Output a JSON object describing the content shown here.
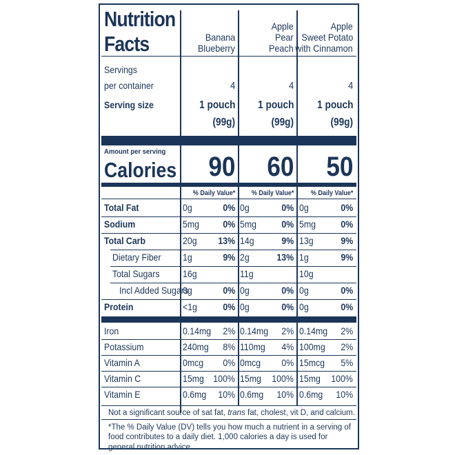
{
  "title_line1": "Nutrition",
  "title_line2": "Facts",
  "products": [
    {
      "name_lines": [
        "Banana",
        "Blueberry"
      ]
    },
    {
      "name_lines": [
        "Apple",
        "Pear",
        "Peach"
      ]
    },
    {
      "name_lines": [
        "Apple",
        "Sweet Potato",
        "with Cinnamon"
      ]
    }
  ],
  "servings_label_1": "Servings",
  "servings_label_2": "per container",
  "servings_values": [
    "4",
    "4",
    "4"
  ],
  "serving_size_label": "Serving size",
  "serving_size_line1": [
    "1 pouch",
    "1 pouch",
    "1 pouch"
  ],
  "serving_size_line2": [
    "(99g)",
    "(99g)",
    "(99g)"
  ],
  "amount_per_serving": "Amount per serving",
  "calories_label": "Calories",
  "calories": [
    "90",
    "60",
    "50"
  ],
  "dv_header": [
    "% Daily Value*",
    "% Daily Value*",
    "% Daily Value*"
  ],
  "nutrients": [
    {
      "label": "Total Fat",
      "bold": true,
      "indent": 0,
      "values": [
        [
          "0g",
          "0%"
        ],
        [
          "0g",
          "0%"
        ],
        [
          "0g",
          "0%"
        ]
      ]
    },
    {
      "label": "Sodium",
      "bold": true,
      "indent": 0,
      "values": [
        [
          "5mg",
          "0%"
        ],
        [
          "5mg",
          "0%"
        ],
        [
          "5mg",
          "0%"
        ]
      ]
    },
    {
      "label": "Total Carb",
      "bold": true,
      "indent": 0,
      "values": [
        [
          "20g",
          "13%"
        ],
        [
          "14g",
          "9%"
        ],
        [
          "13g",
          "9%"
        ]
      ]
    },
    {
      "label": "Dietary Fiber",
      "bold": false,
      "indent": 1,
      "values": [
        [
          "1g",
          "9%"
        ],
        [
          "2g",
          "13%"
        ],
        [
          "1g",
          "9%"
        ]
      ]
    },
    {
      "label": "Total Sugars",
      "bold": false,
      "indent": 1,
      "values": [
        [
          "16g",
          ""
        ],
        [
          "11g",
          ""
        ],
        [
          "10g",
          ""
        ]
      ]
    },
    {
      "label": "Incl Added Sugars",
      "bold": false,
      "indent": 2,
      "values": [
        [
          "0g",
          "0%"
        ],
        [
          "0g",
          "0%"
        ],
        [
          "0g",
          "0%"
        ]
      ]
    },
    {
      "label": "Protein",
      "bold": true,
      "indent": 0,
      "values": [
        [
          "<1g",
          "0%"
        ],
        [
          "0g",
          "0%"
        ],
        [
          "0g",
          "0%"
        ]
      ]
    }
  ],
  "minerals": [
    {
      "label": "Iron",
      "values": [
        [
          "0.14mg",
          "2%"
        ],
        [
          "0.14mg",
          "2%"
        ],
        [
          "0.14mg",
          "2%"
        ]
      ]
    },
    {
      "label": "Potassium",
      "values": [
        [
          "240mg",
          "8%"
        ],
        [
          "110mg",
          "4%"
        ],
        [
          "100mg",
          "2%"
        ]
      ]
    },
    {
      "label": "Vitamin A",
      "values": [
        [
          "0mcg",
          "0%"
        ],
        [
          "0mcg",
          "0%"
        ],
        [
          "15mcg",
          "5%"
        ]
      ]
    },
    {
      "label": "Vitamin C",
      "values": [
        [
          "15mg",
          "100%"
        ],
        [
          "15mg",
          "100%"
        ],
        [
          "15mg",
          "100%"
        ]
      ]
    },
    {
      "label": "Vitamin E",
      "values": [
        [
          "0.6mg",
          "10%"
        ],
        [
          "0.6mg",
          "10%"
        ],
        [
          "0.6mg",
          "10%"
        ]
      ]
    }
  ],
  "footnote_1_pre": "Not a significant source of sat fat, ",
  "footnote_1_italic": "trans",
  "footnote_1_post": " fat, cholest, vit D, and calcium.",
  "footnote_2": "*The % Daily Value (DV) tells you how much a nutrient in a serving of food contributes to a daily diet. 1,000 calories a day is used for general nutrition advice.",
  "colors": {
    "ink": "#1b3558",
    "background": "#ffffff"
  }
}
